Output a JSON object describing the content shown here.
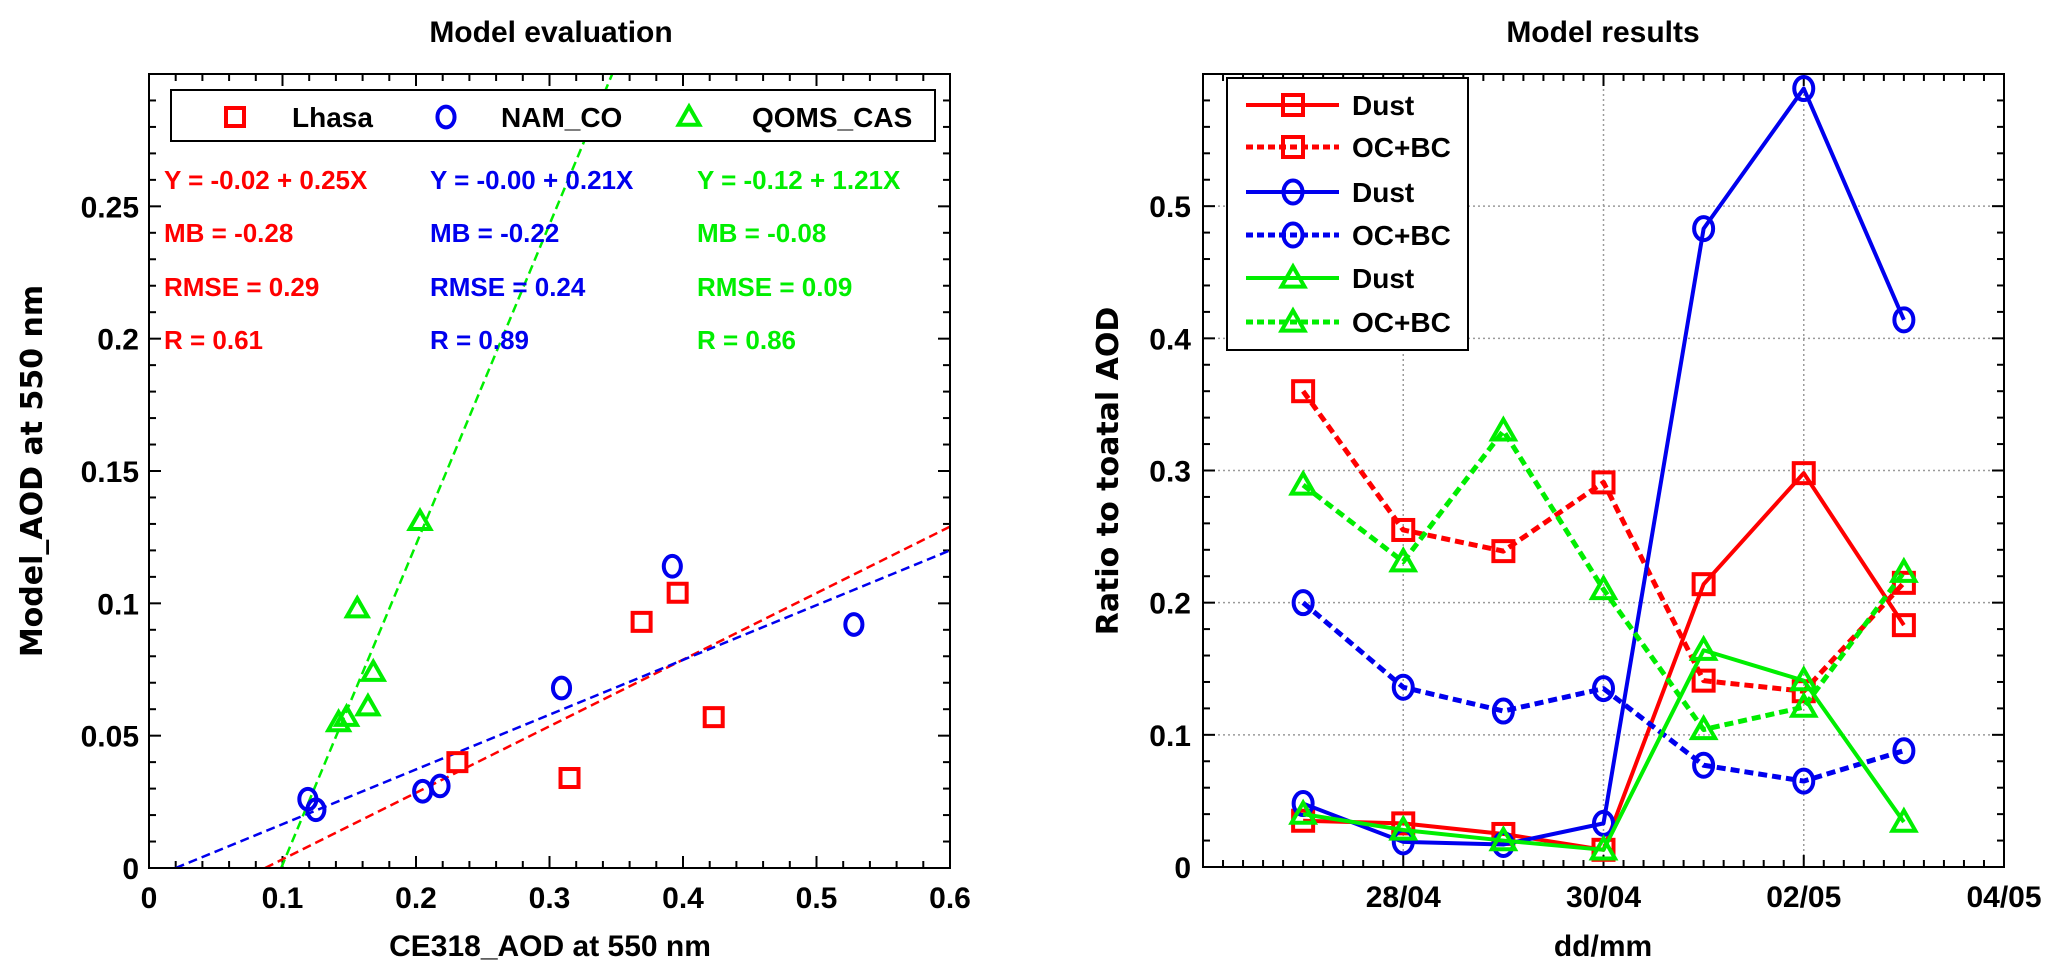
{
  "colors": {
    "red": "#ff0000",
    "blue": "#0000ee",
    "green": "#00ee00",
    "axis": "#000000",
    "grid": "#9a9a9a"
  },
  "chart_data": [
    {
      "type": "scatter",
      "title": "Model evaluation",
      "xlabel": "CE318_AOD at 550 nm",
      "ylabel": "Model_AOD at 550 nm",
      "xlim": [
        0,
        0.6
      ],
      "ylim": [
        0,
        0.3
      ],
      "xticks": [
        0,
        0.1,
        0.2,
        0.3,
        0.4,
        0.5,
        0.6
      ],
      "xtick_labels": [
        "0",
        "0.1",
        "0.2",
        "0.3",
        "0.4",
        "0.5",
        "0.6"
      ],
      "yticks": [
        0,
        0.05,
        0.1,
        0.15,
        0.2,
        0.25
      ],
      "ytick_labels": [
        "0",
        "0.05",
        "0.1",
        "0.15",
        "0.2",
        "0.25"
      ],
      "grid": false,
      "legend_placement": "top",
      "series": [
        {
          "name": "Lhasa",
          "color": "red",
          "marker": "square",
          "points": [
            [
              0.231,
              0.04
            ],
            [
              0.315,
              0.034
            ],
            [
              0.369,
              0.093
            ],
            [
              0.396,
              0.104
            ],
            [
              0.423,
              0.057
            ]
          ],
          "fit": {
            "intercept": -0.02,
            "slope": 0.25,
            "line_from": [
              0.087,
              0.0
            ],
            "line_to": [
              0.6,
              0.129
            ]
          },
          "stats": [
            "Y = -0.02 + 0.25X",
            "MB = -0.28",
            "RMSE = 0.29",
            "R = 0.61"
          ]
        },
        {
          "name": "NAM_CO",
          "color": "blue",
          "marker": "circle",
          "points": [
            [
              0.119,
              0.026
            ],
            [
              0.125,
              0.022
            ],
            [
              0.205,
              0.029
            ],
            [
              0.218,
              0.031
            ],
            [
              0.309,
              0.068
            ],
            [
              0.392,
              0.114
            ],
            [
              0.528,
              0.092
            ]
          ],
          "fit": {
            "intercept": -0.0,
            "slope": 0.21,
            "line_from": [
              0.02,
              0.0
            ],
            "line_to": [
              0.6,
              0.12
            ]
          },
          "stats": [
            "Y = -0.00 + 0.21X",
            "MB = -0.22",
            "RMSE = 0.24",
            "R = 0.89"
          ]
        },
        {
          "name": "QOMS_CAS",
          "color": "green",
          "marker": "triangle",
          "points": [
            [
              0.142,
              0.055
            ],
            [
              0.148,
              0.057
            ],
            [
              0.156,
              0.098
            ],
            [
              0.164,
              0.061
            ],
            [
              0.168,
              0.074
            ],
            [
              0.203,
              0.131
            ]
          ],
          "fit": {
            "intercept": -0.12,
            "slope": 1.21,
            "line_from": [
              0.099,
              0.0
            ],
            "line_to": [
              0.347,
              0.3
            ]
          },
          "stats": [
            "Y = -0.12 + 1.21X",
            "MB = -0.08",
            "RMSE = 0.09",
            "R = 0.86"
          ]
        }
      ]
    },
    {
      "type": "line",
      "title": "Model results",
      "xlabel": "dd/mm",
      "ylabel": "Ratio to toatal AOD",
      "x": [
        "27/04",
        "28/04",
        "29/04",
        "30/04",
        "01/05",
        "02/05",
        "03/05"
      ],
      "x_day_index": [
        1,
        2,
        3,
        4,
        5,
        6,
        7
      ],
      "xlim_day_index": [
        0,
        8
      ],
      "xticks_day_index": [
        2,
        4,
        6,
        8
      ],
      "xtick_labels": [
        "28/04",
        "30/04",
        "02/05",
        "04/05"
      ],
      "ylim": [
        0,
        0.6
      ],
      "yticks": [
        0,
        0.1,
        0.2,
        0.3,
        0.4,
        0.5
      ],
      "ytick_labels": [
        "0",
        "0.1",
        "0.2",
        "0.3",
        "0.4",
        "0.5"
      ],
      "grid": true,
      "legend_placement": "top-left",
      "series": [
        {
          "name": "Dust",
          "color": "red",
          "marker": "square",
          "style": "solid",
          "values": [
            0.035,
            0.033,
            0.025,
            0.013,
            0.214,
            0.298,
            0.183
          ]
        },
        {
          "name": "OC+BC",
          "color": "red",
          "marker": "square",
          "style": "dotted",
          "values": [
            0.36,
            0.255,
            0.239,
            0.291,
            0.141,
            0.133,
            0.215
          ]
        },
        {
          "name": "Dust",
          "color": "blue",
          "marker": "circle",
          "style": "solid",
          "values": [
            0.048,
            0.019,
            0.017,
            0.033,
            0.483,
            0.589,
            0.414
          ]
        },
        {
          "name": "OC+BC",
          "color": "blue",
          "marker": "circle",
          "style": "dotted",
          "values": [
            0.2,
            0.136,
            0.118,
            0.135,
            0.077,
            0.065,
            0.088
          ]
        },
        {
          "name": "Dust",
          "color": "green",
          "marker": "triangle",
          "style": "solid",
          "values": [
            0.04,
            0.028,
            0.02,
            0.013,
            0.164,
            0.141,
            0.034
          ]
        },
        {
          "name": "OC+BC",
          "color": "green",
          "marker": "triangle",
          "style": "dotted",
          "values": [
            0.289,
            0.231,
            0.33,
            0.21,
            0.104,
            0.121,
            0.223
          ]
        }
      ]
    }
  ]
}
